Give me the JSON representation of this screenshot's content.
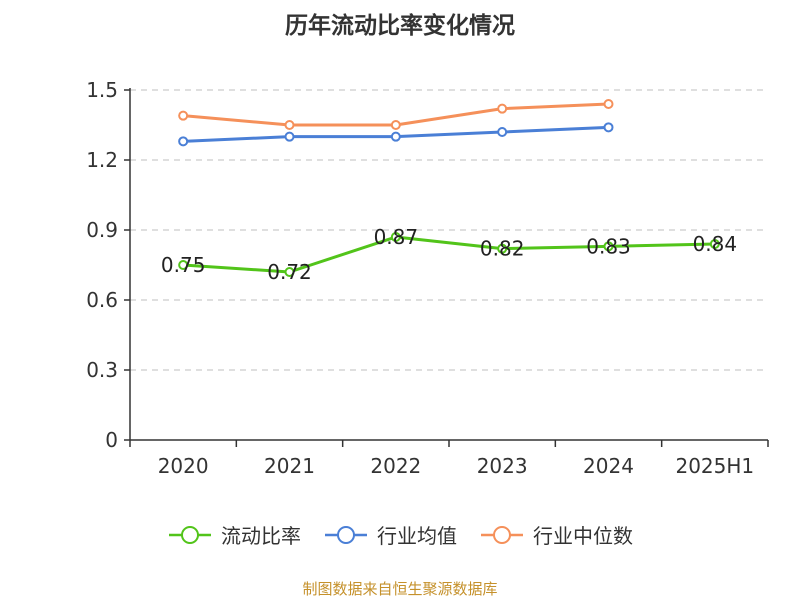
{
  "title": "历年流动比率变化情况",
  "source_note": "制图数据来自恒生聚源数据库",
  "chart_data": {
    "type": "line",
    "title": "历年流动比率变化情况",
    "categories": [
      "2020",
      "2021",
      "2022",
      "2023",
      "2024",
      "2025H1"
    ],
    "ylim": [
      0,
      1.5
    ],
    "yticks": [
      "0",
      "0.3",
      "0.6",
      "0.9",
      "1.2",
      "1.5"
    ],
    "grid": true,
    "legend_position": "bottom",
    "series": [
      {
        "name": "流动比率",
        "color": "#52c41a",
        "values": [
          0.75,
          0.72,
          0.87,
          0.82,
          0.83,
          0.84
        ],
        "labels": [
          "0.75",
          "0.72",
          "0.87",
          "0.82",
          "0.83",
          "0.84"
        ]
      },
      {
        "name": "行业均值",
        "color": "#4a7fd6",
        "values": [
          1.28,
          1.3,
          1.3,
          1.32,
          1.34,
          null
        ]
      },
      {
        "name": "行业中位数",
        "color": "#f5905a",
        "values": [
          1.39,
          1.35,
          1.35,
          1.42,
          1.44,
          null
        ]
      }
    ]
  }
}
